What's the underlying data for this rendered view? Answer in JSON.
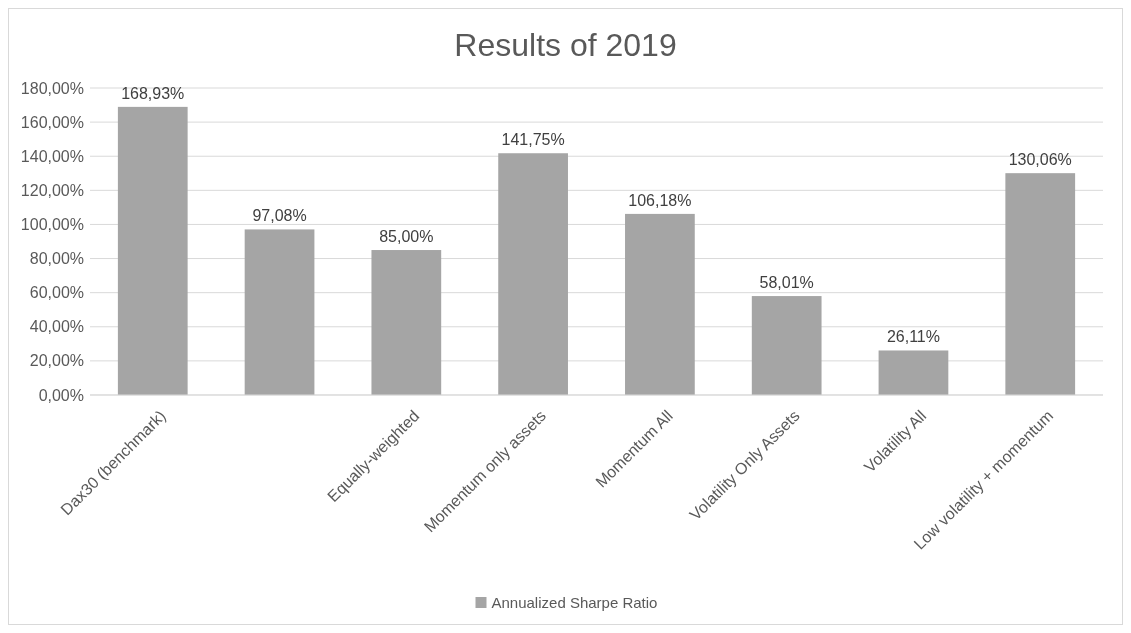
{
  "chart_data": {
    "type": "bar",
    "title": "Results of 2019",
    "categories": [
      "Dax30 (benchmark)",
      null,
      "Equally-weighted",
      "Momentum only assets",
      "Momentum All",
      "Volatility Only Assets",
      "Volatility All",
      "Low volatility + momentum"
    ],
    "series": [
      {
        "name": "Annualized Sharpe Ratio",
        "color": "#a5a5a5",
        "values": [
          168.93,
          97.08,
          85.0,
          141.75,
          106.18,
          58.01,
          26.11,
          130.06
        ],
        "value_labels": [
          "168,93%",
          "97,08%",
          "85,00%",
          "141,75%",
          "106,18%",
          "58,01%",
          "26,11%",
          "130,06%"
        ]
      }
    ],
    "ylim": [
      0,
      180
    ],
    "yticks": [
      {
        "value": 0,
        "label": "0,00%"
      },
      {
        "value": 20,
        "label": "20,00%"
      },
      {
        "value": 40,
        "label": "40,00%"
      },
      {
        "value": 60,
        "label": "60,00%"
      },
      {
        "value": 80,
        "label": "80,00%"
      },
      {
        "value": 100,
        "label": "100,00%"
      },
      {
        "value": 120,
        "label": "120,00%"
      },
      {
        "value": 140,
        "label": "140,00%"
      },
      {
        "value": 160,
        "label": "160,00%"
      },
      {
        "value": 180,
        "label": "180,00%"
      }
    ],
    "grid": "y",
    "legend": "bottom"
  }
}
